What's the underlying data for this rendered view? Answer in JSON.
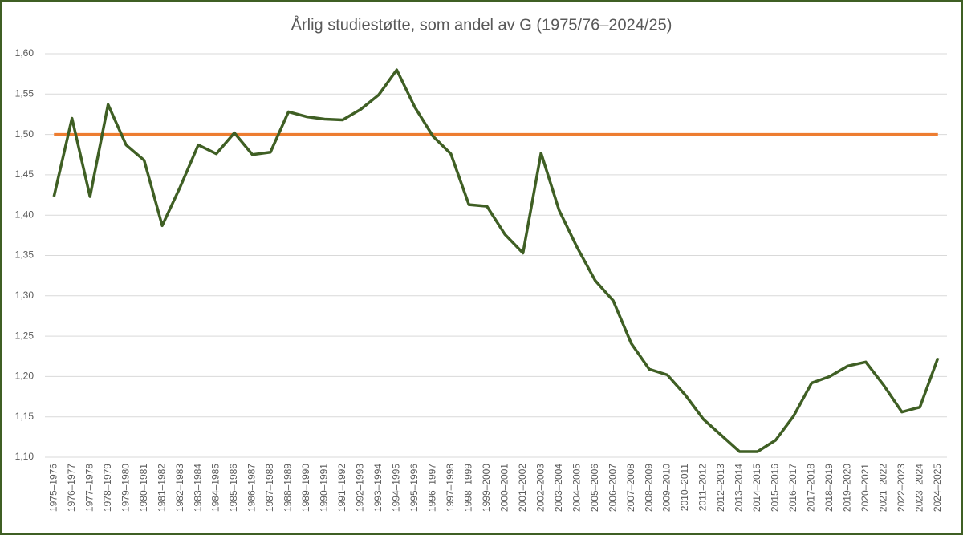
{
  "chart_data": {
    "type": "line",
    "title": "Årlig studiestøtte, som andel av G (1975/76–2024/25)",
    "categories": [
      "1975–1976",
      "1976–1977",
      "1977–1978",
      "1978–1979",
      "1979–1980",
      "1980–1981",
      "1981–1982",
      "1982–1983",
      "1983–1984",
      "1984–1985",
      "1985–1986",
      "1986–1987",
      "1987–1988",
      "1988–1989",
      "1989–1990",
      "1990–1991",
      "1991–1992",
      "1992–1993",
      "1993–1994",
      "1994–1995",
      "1995–1996",
      "1996–1997",
      "1997–1998",
      "1998–1999",
      "1999–2000",
      "2000–2001",
      "2001–2002",
      "2002–2003",
      "2003–2004",
      "2004–2005",
      "2005–2006",
      "2006–2007",
      "2007–2008",
      "2008–2009",
      "2009–2010",
      "2010–2011",
      "2011–2012",
      "2012–2013",
      "2013–2014",
      "2014–2015",
      "2015–2016",
      "2016–2017",
      "2017–2018",
      "2018–2019",
      "2019–2020",
      "2020–2021",
      "2021–2022",
      "2022–2023",
      "2023–2024",
      "2024–2025"
    ],
    "series": [
      {
        "color": "#ed7d31",
        "values": [
          1.5,
          1.5,
          1.5,
          1.5,
          1.5,
          1.5,
          1.5,
          1.5,
          1.5,
          1.5,
          1.5,
          1.5,
          1.5,
          1.5,
          1.5,
          1.5,
          1.5,
          1.5,
          1.5,
          1.5,
          1.5,
          1.5,
          1.5,
          1.5,
          1.5,
          1.5,
          1.5,
          1.5,
          1.5,
          1.5,
          1.5,
          1.5,
          1.5,
          1.5,
          1.5,
          1.5,
          1.5,
          1.5,
          1.5,
          1.5,
          1.5,
          1.5,
          1.5,
          1.5,
          1.5,
          1.5,
          1.5,
          1.5,
          1.5,
          1.5
        ]
      },
      {
        "color": "#3f5f24",
        "values": [
          1.423,
          1.52,
          1.423,
          1.537,
          1.487,
          1.468,
          1.387,
          1.435,
          1.487,
          1.476,
          1.502,
          1.475,
          1.478,
          1.528,
          1.522,
          1.519,
          1.518,
          1.531,
          1.549,
          1.58,
          1.534,
          1.498,
          1.476,
          1.413,
          1.411,
          1.376,
          1.353,
          1.477,
          1.406,
          1.36,
          1.319,
          1.294,
          1.241,
          1.209,
          1.202,
          1.177,
          1.147,
          1.127,
          1.107,
          1.107,
          1.121,
          1.151,
          1.192,
          1.2,
          1.213,
          1.218,
          1.189,
          1.156,
          1.162,
          1.223
        ]
      }
    ],
    "ylim": [
      1.1,
      1.6
    ],
    "yticks": [
      {
        "value": 1.1,
        "label": "1,10"
      },
      {
        "value": 1.15,
        "label": "1,15"
      },
      {
        "value": 1.2,
        "label": "1,20"
      },
      {
        "value": 1.25,
        "label": "1,25"
      },
      {
        "value": 1.3,
        "label": "1,30"
      },
      {
        "value": 1.35,
        "label": "1,35"
      },
      {
        "value": 1.4,
        "label": "1,40"
      },
      {
        "value": 1.45,
        "label": "1,45"
      },
      {
        "value": 1.5,
        "label": "1,50"
      },
      {
        "value": 1.55,
        "label": "1,55"
      },
      {
        "value": 1.6,
        "label": "1,60"
      }
    ],
    "grid": true
  }
}
